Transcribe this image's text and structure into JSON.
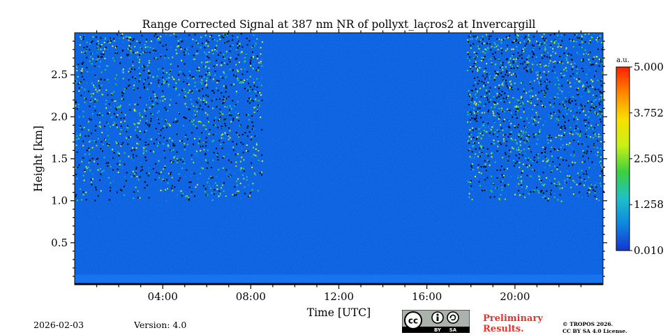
{
  "chart_data": {
    "type": "heatmap",
    "title": "Range Corrected Signal at 387 nm NR of pollyxt_lacros2 at Invercargill",
    "xlabel": "Time [UTC]",
    "ylabel": "Height [km]",
    "x_range_hours": [
      0,
      24
    ],
    "xticks": [
      {
        "value": 4,
        "label": "04:00"
      },
      {
        "value": 8,
        "label": "08:00"
      },
      {
        "value": 12,
        "label": "12:00"
      },
      {
        "value": 16,
        "label": "16:00"
      },
      {
        "value": 20,
        "label": "20:00"
      }
    ],
    "ylim": [
      0,
      3.0
    ],
    "yticks": [
      {
        "value": 0.5,
        "label": "0.5"
      },
      {
        "value": 1.0,
        "label": "1.0"
      },
      {
        "value": 1.5,
        "label": "1.5"
      },
      {
        "value": 2.0,
        "label": "2.0"
      },
      {
        "value": 2.5,
        "label": "2.5"
      }
    ],
    "colorbar": {
      "unit": "a.u.",
      "range": [
        0.01,
        5.0
      ],
      "ticks": [
        {
          "value": 0.01,
          "label": "0.010"
        },
        {
          "value": 1.258,
          "label": "1.258"
        },
        {
          "value": 2.505,
          "label": "2.505"
        },
        {
          "value": 3.752,
          "label": "3.752"
        },
        {
          "value": 5.0,
          "label": "5.000"
        }
      ],
      "colors": [
        "#1535d0",
        "#0d86e0",
        "#20c0c8",
        "#3cd040",
        "#c8f018",
        "#f8e000",
        "#ff8800",
        "#ff2000"
      ]
    },
    "background_color": "#0b5fe0",
    "noisy_periods_hours": [
      [
        0,
        8.5
      ],
      [
        17.8,
        24
      ]
    ]
  },
  "footer": {
    "date": "2026-02-03",
    "version": "Version: 4.0",
    "preliminary": [
      "Preliminary",
      "Results."
    ],
    "copyright": [
      "© TROPOS 2026.",
      "CC BY SA 4.0 License."
    ],
    "license_badge": {
      "cc": "cc",
      "by": "BY",
      "sa": "SA"
    }
  }
}
